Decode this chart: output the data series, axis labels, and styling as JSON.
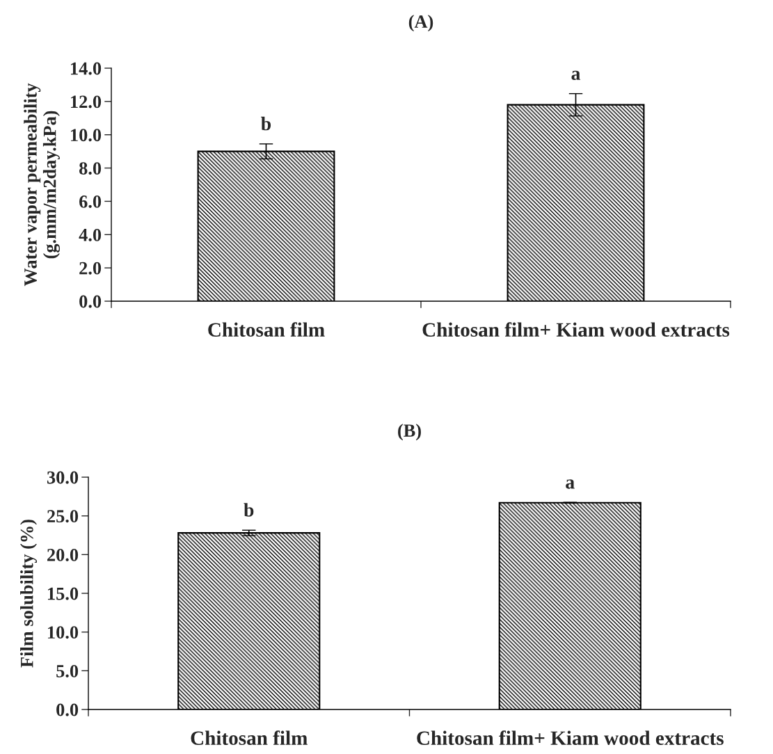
{
  "chart_data": [
    {
      "type": "bar",
      "title": "(A)",
      "ylabel": "Water vapor permeability\n(g.mm/m2day.kPa)",
      "categories": [
        "Chitosan film",
        "Chitosan film+ Kiam wood extracts"
      ],
      "values": [
        9.0,
        11.8
      ],
      "errors": [
        0.45,
        0.67
      ],
      "color": "#000000",
      "ylim": [
        0,
        14
      ],
      "yticks": [
        {
          "value": 0,
          "label": "0.0"
        },
        {
          "value": 2,
          "label": "2.0"
        },
        {
          "value": 4,
          "label": "4.0"
        },
        {
          "value": 6,
          "label": "6.0"
        },
        {
          "value": 8,
          "label": "8.0"
        },
        {
          "value": 10,
          "label": "10.0"
        },
        {
          "value": 12,
          "label": "12.0"
        },
        {
          "value": 14,
          "label": "14.0"
        }
      ],
      "annotations": [
        {
          "text": "b",
          "x": "Chitosan film",
          "y": 9.0
        },
        {
          "text": "a",
          "x": "Chitosan film+ Kiam wood extracts",
          "y": 11.8
        }
      ],
      "grid": false,
      "legend": false
    },
    {
      "type": "bar",
      "title": "(B)",
      "ylabel": "Film solubility (%)",
      "categories": [
        "Chitosan film",
        "Chitosan film+ Kiam wood extracts"
      ],
      "values": [
        22.8,
        26.7
      ],
      "errors": [
        0.35,
        0.05
      ],
      "color": "#000000",
      "ylim": [
        0,
        30
      ],
      "yticks": [
        {
          "value": 0,
          "label": "0.0"
        },
        {
          "value": 5,
          "label": "5.0"
        },
        {
          "value": 10,
          "label": "10.0"
        },
        {
          "value": 15,
          "label": "15.0"
        },
        {
          "value": 20,
          "label": "20.0"
        },
        {
          "value": 25,
          "label": "25.0"
        },
        {
          "value": 30,
          "label": "30.0"
        }
      ],
      "annotations": [
        {
          "text": "b",
          "x": "Chitosan film",
          "y": 22.8
        },
        {
          "text": "a",
          "x": "Chitosan film+ Kiam wood extracts",
          "y": 26.7
        }
      ],
      "grid": false,
      "legend": false
    }
  ]
}
